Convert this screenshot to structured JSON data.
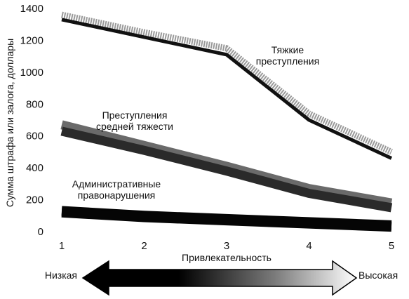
{
  "chart_data": {
    "type": "line",
    "x": [
      1,
      2,
      3,
      4,
      5
    ],
    "xlim": [
      1,
      5
    ],
    "ylim": [
      0,
      1400
    ],
    "xlabel": "Привлекательность",
    "ylabel": "Сумма штрафа или залога, доллары",
    "y_ticks": [
      0,
      200,
      400,
      600,
      800,
      1000,
      1200,
      1400
    ],
    "x_ticks": [
      1,
      2,
      3,
      4,
      5
    ],
    "grid": false,
    "series": [
      {
        "label_lines": [
          "Тяжкие",
          "преступления"
        ],
        "values": [
          1330,
          1220,
          1110,
          700,
          460
        ],
        "shadow_values": [
          1360,
          1250,
          1150,
          740,
          500
        ],
        "color": "#111111",
        "shadow_color": "#9a9a9a"
      },
      {
        "label_lines": [
          "Преступления",
          "средней тяжести"
        ],
        "values": [
          630,
          510,
          380,
          240,
          150
        ],
        "shadow_values": [
          670,
          540,
          410,
          270,
          180
        ],
        "color": "#2a2a2a",
        "shadow_color": "#6a6a6a"
      },
      {
        "label_lines": [
          "Административные",
          "правонарушения"
        ],
        "values": [
          120,
          90,
          70,
          50,
          30
        ],
        "shadow_values": [
          130,
          100,
          80,
          60,
          40
        ],
        "color": "#050505",
        "shadow_color": "#050505"
      }
    ],
    "arrow": {
      "left_label": "Низкая",
      "right_label": "Высокая",
      "dark_color": "#000000",
      "light_color": "#ffffff"
    }
  }
}
